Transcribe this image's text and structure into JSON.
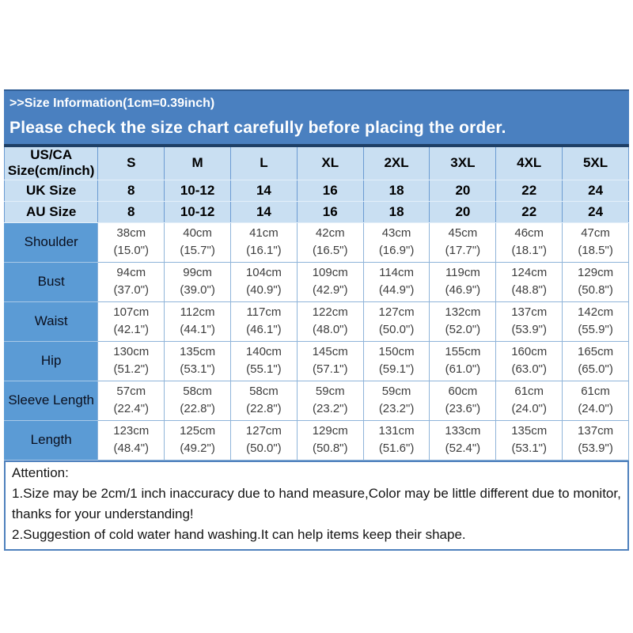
{
  "banner": {
    "title": ">>Size Information(1cm=0.39inch)",
    "notice": "Please check the size chart carefully before placing the order."
  },
  "size_table": {
    "corner_header_lines": [
      "US/CA",
      "Size(cm/inch)"
    ],
    "size_columns": [
      "S",
      "M",
      "L",
      "XL",
      "2XL",
      "3XL",
      "4XL",
      "5XL"
    ],
    "size_rows": [
      {
        "label": "UK Size",
        "values": [
          "8",
          "10-12",
          "14",
          "16",
          "18",
          "20",
          "22",
          "24"
        ]
      },
      {
        "label": "AU Size",
        "values": [
          "8",
          "10-12",
          "14",
          "16",
          "18",
          "20",
          "22",
          "24"
        ]
      }
    ],
    "measurement_rows": [
      {
        "label": "Shoulder",
        "cells": [
          [
            "38cm",
            "(15.0\")"
          ],
          [
            "40cm",
            "(15.7\")"
          ],
          [
            "41cm",
            "(16.1\")"
          ],
          [
            "42cm",
            "(16.5\")"
          ],
          [
            "43cm",
            "(16.9\")"
          ],
          [
            "45cm",
            "(17.7\")"
          ],
          [
            "46cm",
            "(18.1\")"
          ],
          [
            "47cm",
            "(18.5\")"
          ]
        ]
      },
      {
        "label": "Bust",
        "cells": [
          [
            "94cm",
            "(37.0\")"
          ],
          [
            "99cm",
            "(39.0\")"
          ],
          [
            "104cm",
            "(40.9\")"
          ],
          [
            "109cm",
            "(42.9\")"
          ],
          [
            "114cm",
            "(44.9\")"
          ],
          [
            "119cm",
            "(46.9\")"
          ],
          [
            "124cm",
            "(48.8\")"
          ],
          [
            "129cm",
            "(50.8\")"
          ]
        ]
      },
      {
        "label": "Waist",
        "cells": [
          [
            "107cm",
            "(42.1\")"
          ],
          [
            "112cm",
            "(44.1\")"
          ],
          [
            "117cm",
            "(46.1\")"
          ],
          [
            "122cm",
            "(48.0\")"
          ],
          [
            "127cm",
            "(50.0\")"
          ],
          [
            "132cm",
            "(52.0\")"
          ],
          [
            "137cm",
            "(53.9\")"
          ],
          [
            "142cm",
            "(55.9\")"
          ]
        ]
      },
      {
        "label": "Hip",
        "cells": [
          [
            "130cm",
            "(51.2\")"
          ],
          [
            "135cm",
            "(53.1\")"
          ],
          [
            "140cm",
            "(55.1\")"
          ],
          [
            "145cm",
            "(57.1\")"
          ],
          [
            "150cm",
            "(59.1\")"
          ],
          [
            "155cm",
            "(61.0\")"
          ],
          [
            "160cm",
            "(63.0\")"
          ],
          [
            "165cm",
            "(65.0\")"
          ]
        ]
      },
      {
        "label": "Sleeve Length",
        "cells": [
          [
            "57cm",
            "(22.4\")"
          ],
          [
            "58cm",
            "(22.8\")"
          ],
          [
            "58cm",
            "(22.8\")"
          ],
          [
            "59cm",
            "(23.2\")"
          ],
          [
            "59cm",
            "(23.2\")"
          ],
          [
            "60cm",
            "(23.6\")"
          ],
          [
            "61cm",
            "(24.0\")"
          ],
          [
            "61cm",
            "(24.0\")"
          ]
        ]
      },
      {
        "label": "Length",
        "cells": [
          [
            "123cm",
            "(48.4\")"
          ],
          [
            "125cm",
            "(49.2\")"
          ],
          [
            "127cm",
            "(50.0\")"
          ],
          [
            "129cm",
            "(50.8\")"
          ],
          [
            "131cm",
            "(51.6\")"
          ],
          [
            "133cm",
            "(52.4\")"
          ],
          [
            "135cm",
            "(53.1\")"
          ],
          [
            "137cm",
            "(53.9\")"
          ]
        ]
      }
    ]
  },
  "attention": {
    "heading": "Attention:",
    "notes": [
      "1.Size may be 2cm/1 inch inaccuracy due to hand measure,Color may be little different due to monitor, thanks for your understanding!",
      "2.Suggestion of cold water hand washing.It can help items keep their shape."
    ]
  },
  "colors": {
    "banner_blue": "#4a80c0",
    "header_light_blue": "#c9dff2",
    "label_column_blue": "#5b9bd5",
    "table_border_blue": "#8fb4d9",
    "table_top_border_navy": "#1e3f66",
    "attention_border_blue": "#4f81bd"
  }
}
